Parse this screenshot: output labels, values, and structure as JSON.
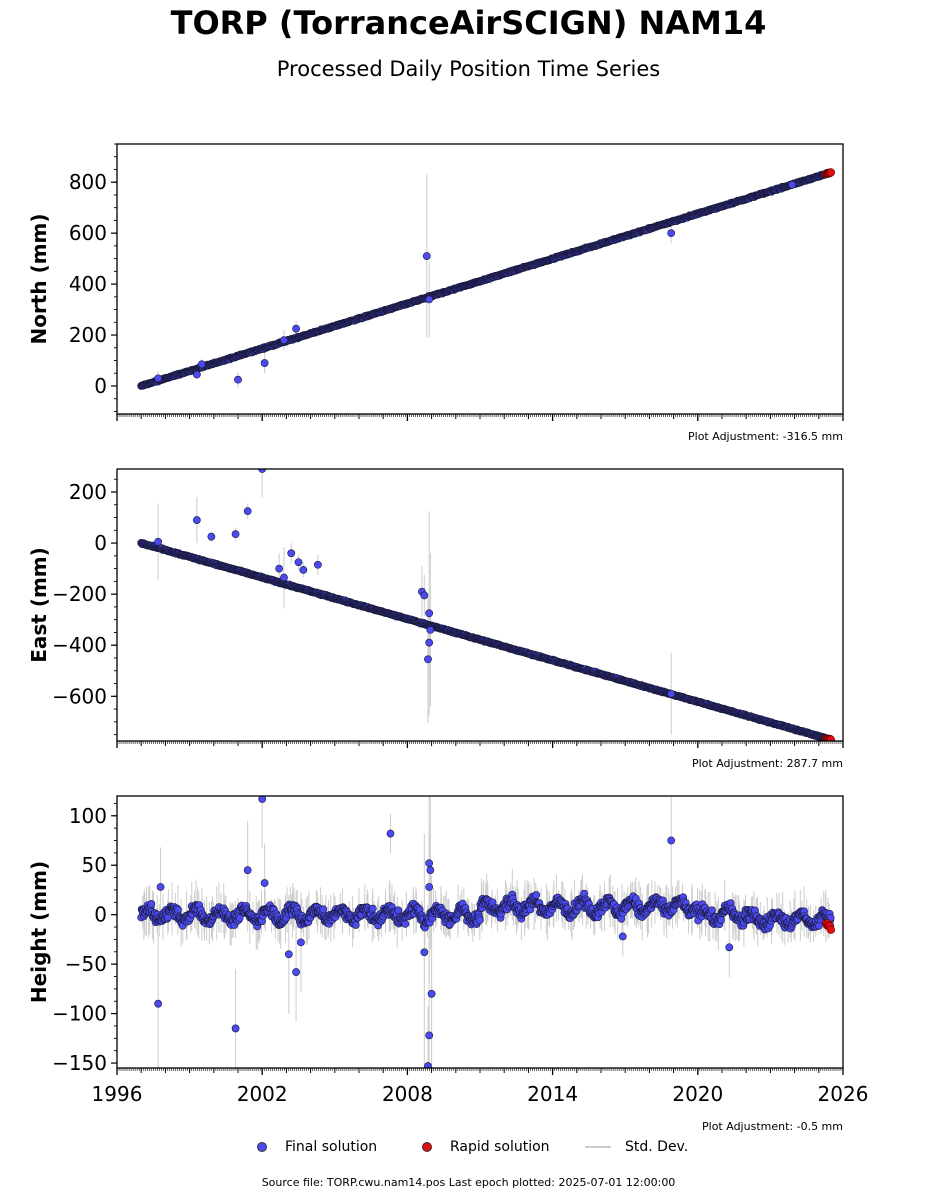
{
  "title": "TORP (TorranceAirSCIGN) NAM14",
  "subtitle": "Processed Daily Position Time Series",
  "footer": "Source file: TORP.cwu.nam14.pos  Last epoch plotted: 2025-07-01 12:00:00",
  "legend": {
    "final": "Final solution",
    "rapid": "Rapid solution",
    "std": "Std. Dev."
  },
  "colors": {
    "final": "#4a4af0",
    "rapid": "#e01010",
    "std": "#cccccc",
    "edge": "#1a1a3a"
  },
  "chart_data": [
    {
      "type": "scatter",
      "ylabel": "North (mm)",
      "adjustment": "Plot Adjustment: -316.5 mm",
      "xlim": [
        1996,
        2026
      ],
      "ylim": [
        -110,
        950
      ],
      "yticks": [
        0,
        200,
        400,
        600,
        800
      ],
      "trend": {
        "x": [
          1997.0,
          2025.5
        ],
        "y": [
          0,
          838
        ]
      },
      "noise": 4,
      "outliers": [
        {
          "x": 1997.7,
          "y": 30,
          "err": 30
        },
        {
          "x": 1999.3,
          "y": 45,
          "err": 20
        },
        {
          "x": 1999.5,
          "y": 85,
          "err": 20
        },
        {
          "x": 2001.0,
          "y": 25,
          "err": 30
        },
        {
          "x": 2002.1,
          "y": 90,
          "err": 40
        },
        {
          "x": 2002.9,
          "y": 180,
          "err": 40
        },
        {
          "x": 2003.4,
          "y": 225,
          "err": 30
        },
        {
          "x": 2008.8,
          "y": 510,
          "err": 320
        },
        {
          "x": 2008.9,
          "y": 340,
          "err": 150
        },
        {
          "x": 2018.9,
          "y": 600,
          "err": 40
        },
        {
          "x": 2023.9,
          "y": 790,
          "err": 15
        }
      ],
      "rapid": {
        "x": [
          2025.3,
          2025.5
        ],
        "y": [
          832,
          838
        ]
      }
    },
    {
      "type": "scatter",
      "ylabel": "East (mm)",
      "adjustment": "Plot Adjustment: 287.7 mm",
      "xlim": [
        1996,
        2026
      ],
      "ylim": [
        -775,
        290
      ],
      "yticks": [
        -600,
        -400,
        -200,
        0,
        200
      ],
      "trend": {
        "x": [
          1997.0,
          2025.5
        ],
        "y": [
          0,
          -770
        ]
      },
      "noise": 4,
      "outliers": [
        {
          "x": 1997.7,
          "y": 5,
          "err": 150
        },
        {
          "x": 1999.3,
          "y": 90,
          "err": 90
        },
        {
          "x": 1999.9,
          "y": 25,
          "err": 20
        },
        {
          "x": 2000.9,
          "y": 35,
          "err": 25
        },
        {
          "x": 2001.4,
          "y": 125,
          "err": 30
        },
        {
          "x": 2002.0,
          "y": 290,
          "err": 110
        },
        {
          "x": 2002.7,
          "y": -100,
          "err": 60
        },
        {
          "x": 2002.9,
          "y": -135,
          "err": 120
        },
        {
          "x": 2003.2,
          "y": -40,
          "err": 40
        },
        {
          "x": 2003.5,
          "y": -75,
          "err": 30
        },
        {
          "x": 2003.7,
          "y": -105,
          "err": 30
        },
        {
          "x": 2004.3,
          "y": -85,
          "err": 40
        },
        {
          "x": 2008.6,
          "y": -190,
          "err": 100
        },
        {
          "x": 2008.7,
          "y": -205,
          "err": 80
        },
        {
          "x": 2008.9,
          "y": -275,
          "err": 400
        },
        {
          "x": 2008.95,
          "y": -340,
          "err": 300
        },
        {
          "x": 2008.9,
          "y": -390,
          "err": 150
        },
        {
          "x": 2008.85,
          "y": -455,
          "err": 250
        },
        {
          "x": 2018.9,
          "y": -590,
          "err": 160
        }
      ],
      "rapid": {
        "x": [
          2025.3,
          2025.5
        ],
        "y": [
          -765,
          -770
        ]
      }
    },
    {
      "type": "scatter",
      "ylabel": "Height (mm)",
      "adjustment": "Plot Adjustment: -0.5 mm",
      "xlabel_ticks": [
        "1996",
        "2002",
        "2008",
        "2014",
        "2020",
        "2026"
      ],
      "xlim": [
        1996,
        2026
      ],
      "ylim": [
        -155,
        120
      ],
      "yticks": [
        -150,
        -100,
        -50,
        0,
        50,
        100
      ],
      "trend": {
        "x": [
          1997.0,
          2025.5
        ],
        "y": [
          0,
          0
        ]
      },
      "noise": 9,
      "outliers": [
        {
          "x": 1997.7,
          "y": -90,
          "err": 70
        },
        {
          "x": 1997.8,
          "y": 28,
          "err": 40
        },
        {
          "x": 2000.9,
          "y": -115,
          "err": 60
        },
        {
          "x": 2001.4,
          "y": 45,
          "err": 50
        },
        {
          "x": 2002.0,
          "y": 117,
          "err": 50
        },
        {
          "x": 2002.1,
          "y": 32,
          "err": 40
        },
        {
          "x": 2003.1,
          "y": -40,
          "err": 60
        },
        {
          "x": 2003.4,
          "y": -58,
          "err": 50
        },
        {
          "x": 2003.6,
          "y": -28,
          "err": 50
        },
        {
          "x": 2007.3,
          "y": 82,
          "err": 20
        },
        {
          "x": 2008.7,
          "y": -38,
          "err": 120
        },
        {
          "x": 2008.9,
          "y": 52,
          "err": 120
        },
        {
          "x": 2008.95,
          "y": 45,
          "err": 80
        },
        {
          "x": 2008.9,
          "y": 28,
          "err": 60
        },
        {
          "x": 2009.0,
          "y": -80,
          "err": 120
        },
        {
          "x": 2008.9,
          "y": -122,
          "err": 80
        },
        {
          "x": 2008.85,
          "y": -153,
          "err": 60
        },
        {
          "x": 2016.9,
          "y": -22,
          "err": 20
        },
        {
          "x": 2018.9,
          "y": 75,
          "err": 60
        },
        {
          "x": 2021.3,
          "y": -33,
          "err": 30
        }
      ],
      "rapid": {
        "x": [
          2025.3,
          2025.5
        ],
        "y": [
          -8,
          -14
        ]
      }
    }
  ]
}
